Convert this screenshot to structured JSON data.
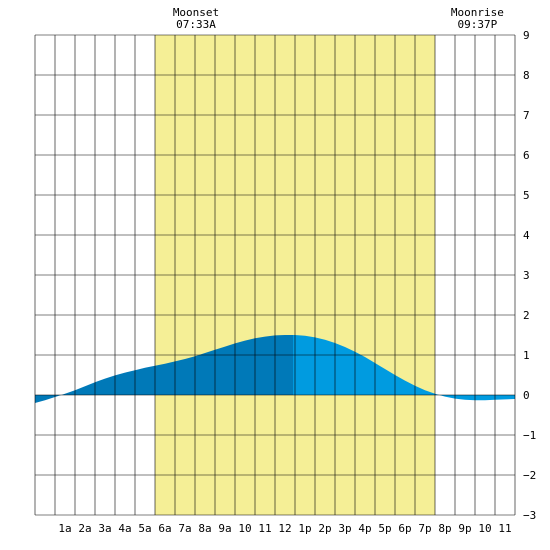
{
  "chart_data": {
    "type": "area",
    "title": "",
    "xlabel": "",
    "ylabel": "",
    "x_unit": "hour",
    "xlim": [
      -0.5,
      23.5
    ],
    "ylim": [
      -3,
      9
    ],
    "y_ticks": [
      -3,
      -2,
      -1,
      0,
      1,
      2,
      3,
      4,
      5,
      6,
      7,
      8,
      9
    ],
    "x_ticks": [
      {
        "x": 1,
        "label": "1a"
      },
      {
        "x": 2,
        "label": "2a"
      },
      {
        "x": 3,
        "label": "3a"
      },
      {
        "x": 4,
        "label": "4a"
      },
      {
        "x": 5,
        "label": "5a"
      },
      {
        "x": 6,
        "label": "6a"
      },
      {
        "x": 7,
        "label": "7a"
      },
      {
        "x": 8,
        "label": "8a"
      },
      {
        "x": 9,
        "label": "9a"
      },
      {
        "x": 10,
        "label": "10"
      },
      {
        "x": 11,
        "label": "11"
      },
      {
        "x": 12,
        "label": "12"
      },
      {
        "x": 13,
        "label": "1p"
      },
      {
        "x": 14,
        "label": "2p"
      },
      {
        "x": 15,
        "label": "3p"
      },
      {
        "x": 16,
        "label": "4p"
      },
      {
        "x": 17,
        "label": "5p"
      },
      {
        "x": 18,
        "label": "6p"
      },
      {
        "x": 19,
        "label": "7p"
      },
      {
        "x": 20,
        "label": "8p"
      },
      {
        "x": 21,
        "label": "9p"
      },
      {
        "x": 22,
        "label": "10"
      },
      {
        "x": 23,
        "label": "11"
      }
    ],
    "grid": true,
    "daylight": {
      "start": 5.5,
      "end": 19.5,
      "color": "#f5ef96"
    },
    "moon_events": [
      {
        "label": "Moonset",
        "time": "07:33A",
        "x": 7.55
      },
      {
        "label": "Moonrise",
        "time": "09:37P",
        "x": 21.62
      }
    ],
    "current_time_x": 12.4,
    "series": [
      {
        "x": [
          -0.5,
          0,
          0.5,
          1,
          1.5,
          2,
          2.5,
          3,
          3.5,
          4,
          4.5,
          5,
          5.5,
          6,
          6.5,
          7,
          7.5,
          8,
          8.5,
          9,
          9.5,
          10,
          10.5,
          11,
          11.5,
          12,
          12.4,
          12.5,
          13,
          13.5,
          14,
          14.5,
          15,
          15.5,
          16,
          16.5,
          17,
          17.5,
          18,
          18.5,
          19,
          19.5,
          20,
          20.5,
          21,
          21.5,
          22,
          22.5,
          23,
          23.5
        ],
        "y": [
          -0.2,
          -0.13,
          -0.05,
          0.03,
          0.12,
          0.22,
          0.32,
          0.41,
          0.49,
          0.56,
          0.62,
          0.68,
          0.73,
          0.78,
          0.84,
          0.9,
          0.97,
          1.05,
          1.13,
          1.21,
          1.29,
          1.36,
          1.42,
          1.46,
          1.49,
          1.5,
          1.5,
          1.5,
          1.48,
          1.44,
          1.38,
          1.3,
          1.2,
          1.08,
          0.95,
          0.8,
          0.65,
          0.5,
          0.36,
          0.23,
          0.12,
          0.03,
          -0.04,
          -0.09,
          -0.12,
          -0.13,
          -0.13,
          -0.12,
          -0.11,
          -0.1
        ]
      }
    ]
  },
  "colors": {
    "background": "#ffffff",
    "grid": "#000000",
    "tide_past": "#0079b8",
    "tide_future": "#009be0",
    "daylight": "#f5ef96"
  }
}
